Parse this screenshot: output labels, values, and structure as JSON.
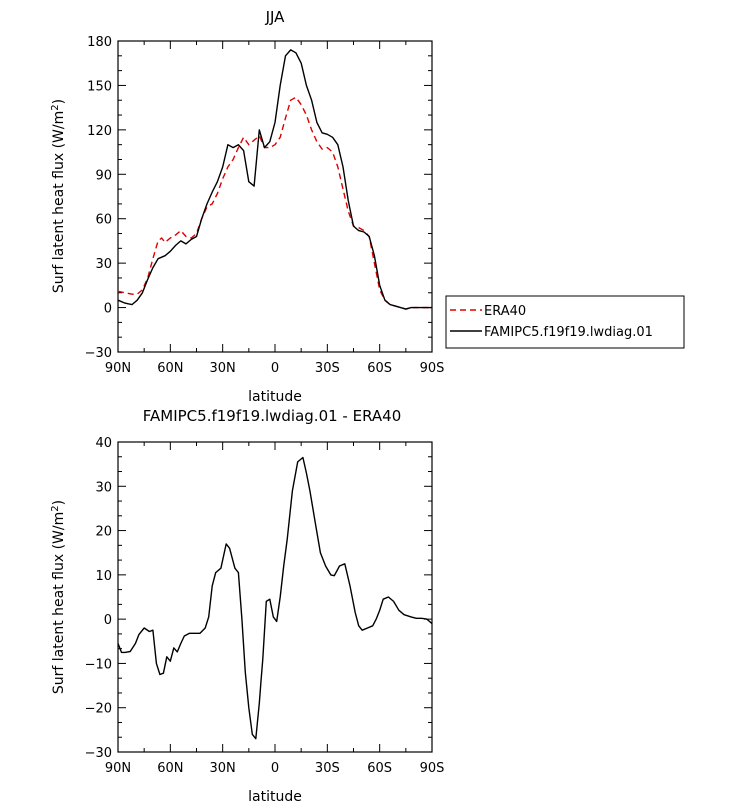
{
  "chart_data": [
    {
      "type": "line",
      "title": "JJA",
      "xlabel": "latitude",
      "ylabel": "Surf latent heat flux (W/m²)",
      "ylabel_parts": [
        "Surf latent heat flux (W/m",
        "2",
        ")"
      ],
      "xlim": [
        90,
        -90
      ],
      "ylim": [
        -30,
        180
      ],
      "xticks": [
        {
          "value": 90,
          "label": "90N"
        },
        {
          "value": 60,
          "label": "60N"
        },
        {
          "value": 30,
          "label": "30N"
        },
        {
          "value": 0,
          "label": "0"
        },
        {
          "value": -30,
          "label": "30S"
        },
        {
          "value": -60,
          "label": "60S"
        },
        {
          "value": -90,
          "label": "90S"
        }
      ],
      "yticks": [
        -30,
        0,
        30,
        60,
        90,
        120,
        150,
        180
      ],
      "grid": false,
      "legend": "outside-right",
      "series": [
        {
          "name": "ERA40",
          "color": "#dd0000",
          "dash": "dashed",
          "x": [
            90,
            86,
            82,
            79,
            76,
            73,
            70,
            67,
            65,
            63,
            60,
            57,
            54,
            51,
            48,
            45,
            42,
            39,
            36,
            33,
            30,
            27,
            24,
            21,
            18,
            15,
            12,
            9,
            6,
            3,
            0,
            -3,
            -6,
            -9,
            -12,
            -15,
            -18,
            -21,
            -24,
            -27,
            -30,
            -33,
            -36,
            -39,
            -42,
            -45,
            -48,
            -51,
            -54,
            -57,
            -60,
            -63,
            -66,
            -69,
            -72,
            -75,
            -78,
            -81,
            -84,
            -87,
            -90
          ],
          "y": [
            11,
            10,
            9,
            9,
            12,
            20,
            33,
            45,
            47,
            44,
            47,
            49,
            52,
            48,
            47,
            50,
            60,
            68,
            70,
            77,
            87,
            95,
            100,
            108,
            115,
            110,
            113,
            116,
            108,
            108,
            110,
            115,
            128,
            140,
            142,
            137,
            130,
            120,
            112,
            107,
            108,
            105,
            95,
            80,
            65,
            55,
            54,
            52,
            48,
            30,
            12,
            5,
            2,
            1,
            0,
            -1,
            0,
            0,
            0,
            0,
            0
          ]
        },
        {
          "name": "FAMIPC5.f19f19.lwdiag.01",
          "color": "#000000",
          "dash": "solid",
          "x": [
            90,
            86,
            82,
            79,
            76,
            73,
            70,
            67,
            65,
            63,
            60,
            57,
            54,
            51,
            48,
            45,
            42,
            39,
            36,
            33,
            30,
            27,
            24,
            21,
            18,
            15,
            12,
            9,
            6,
            3,
            0,
            -3,
            -6,
            -9,
            -12,
            -15,
            -18,
            -21,
            -24,
            -27,
            -30,
            -33,
            -36,
            -39,
            -42,
            -45,
            -48,
            -51,
            -54,
            -57,
            -60,
            -63,
            -66,
            -69,
            -72,
            -75,
            -78,
            -81,
            -84,
            -87,
            -90
          ],
          "y": [
            5,
            3,
            2,
            5,
            10,
            19,
            27,
            33,
            34,
            35,
            38,
            42,
            45,
            43,
            46,
            48,
            60,
            70,
            78,
            85,
            95,
            110,
            108,
            110,
            106,
            85,
            82,
            120,
            108,
            112,
            125,
            150,
            170,
            174,
            172,
            165,
            150,
            140,
            125,
            118,
            117,
            115,
            110,
            95,
            72,
            55,
            52,
            51,
            48,
            35,
            15,
            5,
            2,
            1,
            0,
            -1,
            0,
            0,
            0,
            0,
            0
          ]
        }
      ]
    },
    {
      "type": "line",
      "title": "FAMIPC5.f19f19.lwdiag.01 - ERA40",
      "xlabel": "latitude",
      "ylabel": "Surf latent heat flux (W/m²)",
      "ylabel_parts": [
        "Surf latent heat flux (W/m",
        "2",
        ")"
      ],
      "xlim": [
        90,
        -90
      ],
      "ylim": [
        -30,
        40
      ],
      "xticks": [
        {
          "value": 90,
          "label": "90N"
        },
        {
          "value": 60,
          "label": "60N"
        },
        {
          "value": 30,
          "label": "30N"
        },
        {
          "value": 0,
          "label": "0"
        },
        {
          "value": -30,
          "label": "30S"
        },
        {
          "value": -60,
          "label": "60S"
        },
        {
          "value": -90,
          "label": "90S"
        }
      ],
      "yticks": [
        -30,
        -20,
        -10,
        0,
        10,
        20,
        30,
        40
      ],
      "grid": false,
      "series": [
        {
          "color": "#000000",
          "dash": "solid",
          "x": [
            90,
            88,
            86,
            83,
            80,
            78,
            75,
            72,
            70,
            68,
            66,
            64,
            62,
            60,
            58,
            56,
            54,
            52,
            49,
            46,
            43,
            40,
            38,
            36,
            34,
            31,
            28,
            26,
            23,
            21,
            19,
            17,
            15,
            13,
            11,
            9,
            8,
            7,
            5,
            3,
            1,
            -1,
            -3,
            -5,
            -7,
            -10,
            -13,
            -16,
            -18,
            -20,
            -23,
            -26,
            -29,
            -32,
            -34,
            -37,
            -40,
            -43,
            -46,
            -48,
            -50,
            -53,
            -56,
            -58,
            -60,
            -62,
            -65,
            -68,
            -71,
            -74,
            -78,
            -81,
            -84,
            -87,
            -90
          ],
          "y": [
            -5.5,
            -7.5,
            -7.5,
            -7.3,
            -5.5,
            -3.5,
            -2,
            -2.8,
            -2.5,
            -10,
            -12.5,
            -12.2,
            -8.5,
            -9.5,
            -6.5,
            -7.4,
            -5.5,
            -3.8,
            -3.2,
            -3.2,
            -3.2,
            -2,
            0.5,
            7.5,
            10.5,
            11.5,
            17,
            16,
            11.5,
            10.5,
            0,
            -12,
            -20,
            -26,
            -27,
            -19,
            -14,
            -9,
            4,
            4.5,
            0.5,
            -0.5,
            5,
            12,
            18,
            29,
            35.5,
            36.5,
            33,
            29,
            22,
            15,
            12,
            10,
            9.8,
            12,
            12.5,
            7.5,
            1.5,
            -1.5,
            -2.5,
            -2,
            -1.5,
            0,
            2,
            4.5,
            5,
            4,
            2,
            1,
            0.5,
            0.2,
            0.2,
            0,
            -1
          ]
        }
      ]
    }
  ]
}
